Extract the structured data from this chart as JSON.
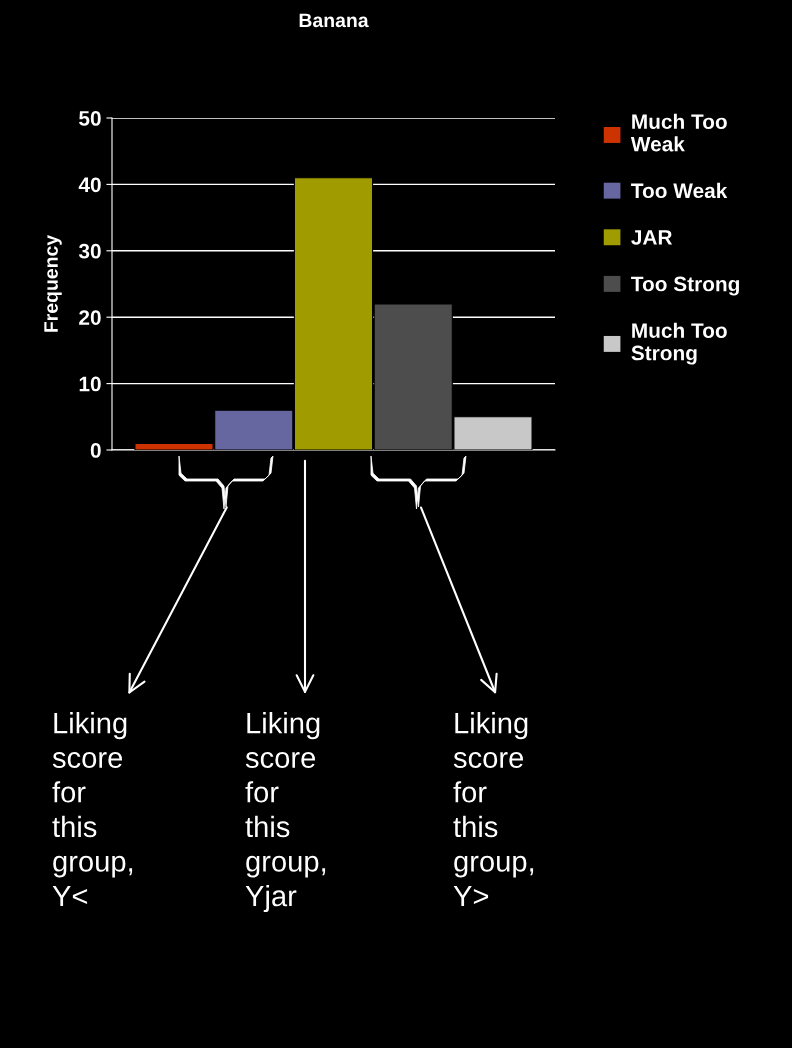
{
  "chart_data": {
    "type": "bar",
    "title": "Banana",
    "ylabel": "Frequency",
    "categories": [
      null
    ],
    "series": [
      {
        "name": "Much Too Weak",
        "color": "#cc3300",
        "values": [
          1
        ]
      },
      {
        "name": "Too Weak",
        "color": "#6666a0",
        "values": [
          6
        ]
      },
      {
        "name": "JAR",
        "color": "#a09c00",
        "values": [
          41
        ]
      },
      {
        "name": "Too Strong",
        "color": "#4d4d4d",
        "values": [
          22
        ]
      },
      {
        "name": "Much Too Strong",
        "color": "#c8c8c8",
        "values": [
          5
        ]
      }
    ],
    "ylim": [
      0,
      50
    ],
    "yticks": [
      0,
      10,
      20,
      30,
      40,
      50
    ],
    "grid": "y",
    "legend": "right",
    "annotations": [
      "Liking score for this group, Y<",
      "Liking score for this group, Yjar",
      "Liking score for this group, Y>"
    ]
  }
}
